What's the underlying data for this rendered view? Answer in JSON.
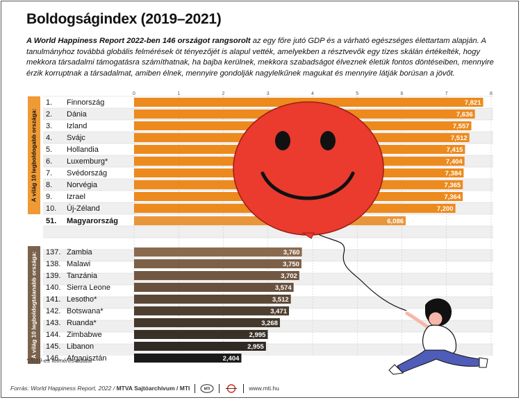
{
  "title": "Boldogságindex (2019–2021)",
  "subtitle_bold": "A World Happiness Report 2022-ben 146 országot rangsorolt",
  "subtitle_rest": " az egy főre jutó GDP és a várható egészséges élettartam alapján. A tanulmányhoz továbbá globális felmérések öt tényezőjét is alapul vették, amelyekben a résztvevők egy tízes skálán értékelték, hogy mekkora társadalmi támogatásra számíthatnak, ha bajba kerülnek, mekkora szabadságot élveznek életük fontos döntéseiben, mennyire érzik korruptnak a társadalmat, amiben élnek, mennyire gondolják nagylelkűnek magukat és mennyire látják borúsan a jövőt.",
  "footnote": "*2019-es felmérés adatai",
  "footer": {
    "source": "Forrás: World Happiness Report, 2022 / ",
    "credit": "MTVA Sajtóarchívum / MTI",
    "logo1": "MTI",
    "web": "www.mti.hu"
  },
  "colors": {
    "top": "#ec8a1d",
    "hungary": "#e8963b",
    "label_band": "#ef9a35",
    "bottom_gradient": [
      "#8a6a4e",
      "#7d6048",
      "#725843",
      "#6a513e",
      "#5c4836",
      "#4e4030",
      "#44382c",
      "#393128",
      "#2f2a24",
      "#1a1a1a"
    ],
    "balloon": "#ea3b2e",
    "row_alt": "#efefef"
  },
  "chart_data": {
    "type": "bar",
    "orientation": "horizontal",
    "xlim": [
      0,
      8
    ],
    "xticks": [
      "0",
      "1",
      "2",
      "3",
      "4",
      "5",
      "6",
      "7",
      "8"
    ],
    "groups": [
      {
        "label": "A világ 10 legboldogabb országa:",
        "rows": [
          {
            "rank": "1.",
            "country": "Finnország",
            "value": 7.821,
            "label": "7,821"
          },
          {
            "rank": "2.",
            "country": "Dánia",
            "value": 7.636,
            "label": "7,636"
          },
          {
            "rank": "3.",
            "country": "Izland",
            "value": 7.557,
            "label": "7,557"
          },
          {
            "rank": "4.",
            "country": "Svájc",
            "value": 7.512,
            "label": "7,512"
          },
          {
            "rank": "5.",
            "country": "Hollandia",
            "value": 7.415,
            "label": "7,415"
          },
          {
            "rank": "6.",
            "country": "Luxemburg*",
            "value": 7.404,
            "label": "7,404"
          },
          {
            "rank": "7.",
            "country": "Svédország",
            "value": 7.384,
            "label": "7,384"
          },
          {
            "rank": "8.",
            "country": "Norvégia",
            "value": 7.365,
            "label": "7,365"
          },
          {
            "rank": "9.",
            "country": "Izrael",
            "value": 7.364,
            "label": "7,364"
          },
          {
            "rank": "10.",
            "country": "Új-Zéland",
            "value": 7.2,
            "label": "7,200"
          }
        ]
      },
      {
        "label": "",
        "rows": [
          {
            "rank": "51.",
            "country": "Magyarország",
            "value": 6.086,
            "label": "6,086"
          }
        ]
      },
      {
        "label": "A világ 10 legboldogtalanabb országa:",
        "rows": [
          {
            "rank": "137.",
            "country": "Zambia",
            "value": 3.76,
            "label": "3,760"
          },
          {
            "rank": "138.",
            "country": "Malawi",
            "value": 3.75,
            "label": "3,750"
          },
          {
            "rank": "139.",
            "country": "Tanzánia",
            "value": 3.702,
            "label": "3,702"
          },
          {
            "rank": "140.",
            "country": "Sierra Leone",
            "value": 3.574,
            "label": "3,574"
          },
          {
            "rank": "141.",
            "country": "Lesotho*",
            "value": 3.512,
            "label": "3,512"
          },
          {
            "rank": "142.",
            "country": "Botswana*",
            "value": 3.471,
            "label": "3,471"
          },
          {
            "rank": "143.",
            "country": "Ruanda*",
            "value": 3.268,
            "label": "3,268"
          },
          {
            "rank": "144.",
            "country": "Zimbabwe",
            "value": 2.995,
            "label": "2,995"
          },
          {
            "rank": "145.",
            "country": "Libanon",
            "value": 2.955,
            "label": "2,955"
          },
          {
            "rank": "146.",
            "country": "Afganisztán",
            "value": 2.404,
            "label": "2,404"
          }
        ]
      }
    ],
    "grid": true,
    "legend": "none"
  }
}
